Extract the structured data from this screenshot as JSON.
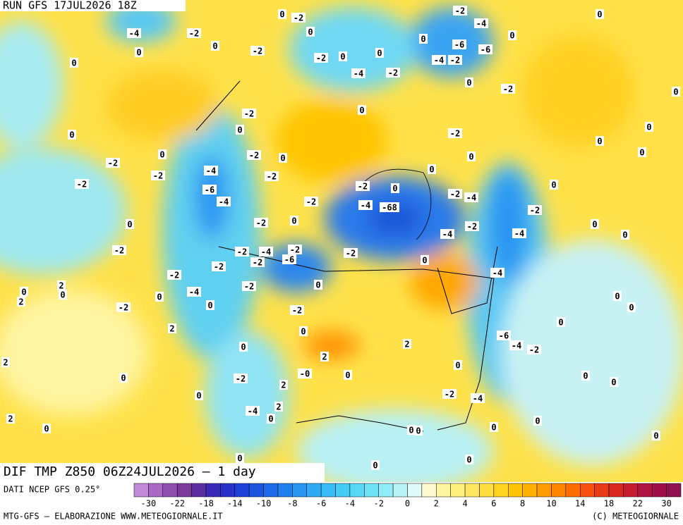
{
  "header": {
    "run": "RUN GFS 17JUL2026 18Z"
  },
  "map": {
    "title": "DIF TMP Z850 06Z24JUL2026 — 1 day",
    "contour_labels": [
      "-4",
      "-2",
      "-2",
      "0",
      "0",
      "0",
      "0",
      "-2",
      "0",
      "-2",
      "0",
      "-4",
      "-2",
      "0",
      "0",
      "-2",
      "-4",
      "-6",
      "-6",
      "-4",
      "-2",
      "0",
      "0",
      "0",
      "-2",
      "0",
      "0",
      "-2",
      "0",
      "0",
      "-2",
      "0",
      "0",
      "0",
      "0",
      "-2",
      "0",
      "-2",
      "-4",
      "-2",
      "-2",
      "-2",
      "-6",
      "-4",
      "-2",
      "-2",
      "0",
      "-4",
      "-68",
      "0",
      "0",
      "-2",
      "-4",
      "0",
      "-2",
      "0",
      "-2",
      "0",
      "-2",
      "-4",
      "-4",
      "0",
      "0",
      "-2",
      "-2",
      "-4",
      "-2",
      "-6",
      "-2",
      "-2",
      "0",
      "-2",
      "-2",
      "-4",
      "2",
      "0",
      "2",
      "0",
      "-4",
      "-2",
      "0",
      "0",
      "-2",
      "0",
      "0",
      "0",
      "-2",
      "2",
      "0",
      "0",
      "-6",
      "-4",
      "-2",
      "2",
      "0",
      "2",
      "2",
      "-0",
      "0",
      "0",
      "0",
      "-2",
      "2",
      "0",
      "0",
      "-2",
      "-4",
      "0",
      "2",
      "-4",
      "0",
      "2",
      "0",
      "0",
      "0",
      "0",
      "0",
      "0",
      "0",
      "0",
      "0"
    ]
  },
  "footer": {
    "source": "DATI NCEP GFS 0.25°",
    "credit": "MTG-GFS — ELABORAZIONE WWW.METEOGIORNALE.IT",
    "copyright": "(C) METEOGIORNALE"
  },
  "colorbar": {
    "labels": [
      "-30",
      "-22",
      "-18",
      "-14",
      "-10",
      "-8",
      "-6",
      "-4",
      "-2",
      "0",
      "2",
      "4",
      "6",
      "8",
      "10",
      "14",
      "18",
      "22",
      "30"
    ],
    "colors": [
      "#c08ad6",
      "#a868c4",
      "#9050b0",
      "#7a3a9c",
      "#5a2ea0",
      "#3a2ab8",
      "#2a30c8",
      "#1e40d8",
      "#1a55e0",
      "#1e6ae8",
      "#2080ee",
      "#2a96f2",
      "#30aaf4",
      "#38bef6",
      "#44ccf6",
      "#58d8f6",
      "#70e2f6",
      "#90ecf6",
      "#b8f4f6",
      "#e0fafa",
      "#fffbd0",
      "#fff5a0",
      "#fff080",
      "#ffe860",
      "#ffe040",
      "#ffd420",
      "#ffc400",
      "#ffb000",
      "#ff9c00",
      "#ff8400",
      "#ff6c00",
      "#f85010",
      "#e83a18",
      "#d82820",
      "#c81c30",
      "#b01440",
      "#a01048",
      "#901050"
    ]
  }
}
